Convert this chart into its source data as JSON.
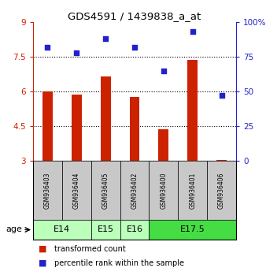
{
  "title": "GDS4591 / 1439838_a_at",
  "samples": [
    "GSM936403",
    "GSM936404",
    "GSM936405",
    "GSM936402",
    "GSM936400",
    "GSM936401",
    "GSM936406"
  ],
  "bar_values": [
    6.0,
    5.85,
    6.65,
    5.75,
    4.35,
    7.35,
    3.05
  ],
  "dot_values": [
    82,
    78,
    88,
    82,
    65,
    93,
    47
  ],
  "bar_color": "#cc2200",
  "dot_color": "#2222cc",
  "ylim_left": [
    3,
    9
  ],
  "ylim_right": [
    0,
    100
  ],
  "yticks_left": [
    3,
    4.5,
    6,
    7.5,
    9
  ],
  "ytick_labels_left": [
    "3",
    "4.5",
    "6",
    "7.5",
    "9"
  ],
  "yticks_right": [
    0,
    25,
    50,
    75,
    100
  ],
  "ytick_labels_right": [
    "0",
    "25",
    "50",
    "75",
    "100%"
  ],
  "hlines": [
    4.5,
    6.0,
    7.5
  ],
  "age_groups": [
    {
      "label": "E14",
      "start": 0,
      "end": 2,
      "color": "#bbffbb"
    },
    {
      "label": "E15",
      "start": 2,
      "end": 3,
      "color": "#bbffbb"
    },
    {
      "label": "E16",
      "start": 3,
      "end": 4,
      "color": "#bbffbb"
    },
    {
      "label": "E17.5",
      "start": 4,
      "end": 7,
      "color": "#44dd44"
    }
  ],
  "legend_bar_label": "transformed count",
  "legend_dot_label": "percentile rank within the sample",
  "age_label": "age",
  "sample_box_color": "#c8c8c8",
  "bar_width": 0.35
}
